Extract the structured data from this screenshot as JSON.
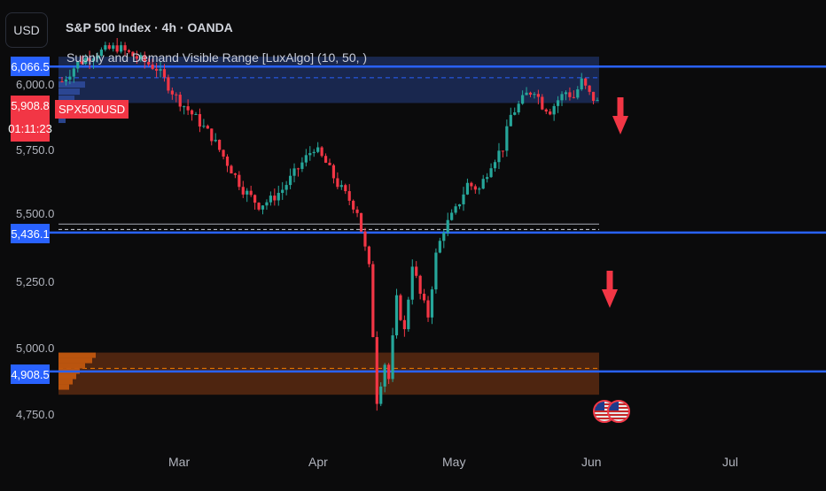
{
  "header": {
    "currency": "USD",
    "symbol_title": "S&P 500 Index · 4h · OANDA",
    "indicator": "Supply and Demand Visible Range [LuxAlgo] (10, 50, )"
  },
  "price_axis": {
    "labels": [
      "6,000.0",
      "5,750.0",
      "5,500.0",
      "5,250.0",
      "5,000.0",
      "4,750.0"
    ]
  },
  "badges": {
    "level_top": "6,066.5",
    "current_price": "5,908.8",
    "countdown": "01:11:23",
    "level_mid": "5,436.1",
    "level_bottom": "4,908.5",
    "symbol": "SPX500USD"
  },
  "time_axis": {
    "labels": [
      "Mar",
      "Apr",
      "May",
      "Jun",
      "Jul"
    ]
  },
  "icons": {
    "down_arrow": "down-arrow-icon",
    "flag": "us-flag-icon"
  },
  "colors": {
    "bull": "#26a69a",
    "bear": "#f23645",
    "level_line": "#2962ff",
    "supply_zone": "#1c2d5a",
    "demand_zone": "#5a2a12"
  },
  "chart_data": {
    "type": "candlestick",
    "timeframe": "4h",
    "ylim": [
      4700,
      6160
    ],
    "x_ticks": [
      "Mar",
      "Apr",
      "May",
      "Jun",
      "Jul"
    ],
    "horizontal_levels": [
      6066.5,
      5436.1,
      4908.5
    ],
    "supply_zone": {
      "top": 6104,
      "bottom": 5928,
      "mid": 6024
    },
    "demand_zone": {
      "top": 4980,
      "bottom": 4820,
      "mid": 4920
    },
    "support_line": 5468,
    "close_path": [
      [
        0,
        6010
      ],
      [
        4,
        6080
      ],
      [
        9,
        6120
      ],
      [
        14,
        6140
      ],
      [
        19,
        6100
      ],
      [
        24,
        6060
      ],
      [
        29,
        5950
      ],
      [
        34,
        5870
      ],
      [
        38,
        5800
      ],
      [
        42,
        5700
      ],
      [
        46,
        5600
      ],
      [
        50,
        5540
      ],
      [
        53,
        5560
      ],
      [
        56,
        5600
      ],
      [
        60,
        5680
      ],
      [
        64,
        5760
      ],
      [
        67,
        5700
      ],
      [
        70,
        5620
      ],
      [
        73,
        5560
      ],
      [
        75,
        5520
      ],
      [
        78,
        5300
      ],
      [
        80,
        4800
      ],
      [
        82,
        4940
      ],
      [
        83,
        4880
      ],
      [
        85,
        5180
      ],
      [
        87,
        5060
      ],
      [
        89,
        5320
      ],
      [
        91,
        5200
      ],
      [
        93,
        5120
      ],
      [
        95,
        5350
      ],
      [
        97,
        5450
      ],
      [
        100,
        5520
      ],
      [
        103,
        5620
      ],
      [
        106,
        5600
      ],
      [
        109,
        5700
      ],
      [
        112,
        5760
      ],
      [
        114,
        5880
      ],
      [
        116,
        5920
      ],
      [
        118,
        5960
      ],
      [
        120,
        5980
      ],
      [
        122,
        5920
      ],
      [
        124,
        5900
      ],
      [
        126,
        5940
      ],
      [
        128,
        5970
      ],
      [
        130,
        5950
      ],
      [
        132,
        6010
      ],
      [
        134,
        5960
      ],
      [
        136,
        5930
      ]
    ],
    "total_bars": 137
  }
}
